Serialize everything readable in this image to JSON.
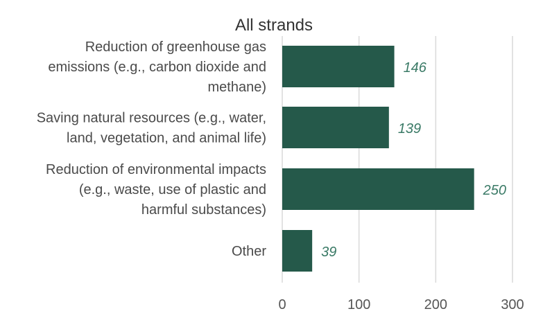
{
  "chart_data": {
    "type": "bar",
    "orientation": "horizontal",
    "title": "All strands",
    "categories": [
      [
        "Reduction of greenhouse gas",
        "emissions (e.g., carbon dioxide and",
        "methane)"
      ],
      [
        "Saving natural resources (e.g., water,",
        "land, vegetation, and animal life)"
      ],
      [
        "Reduction of environmental impacts",
        "(e.g., waste, use of plastic and",
        "harmful substances)"
      ],
      [
        "Other"
      ]
    ],
    "values": [
      146,
      139,
      250,
      39
    ],
    "data_labels": [
      "146",
      "139",
      "250",
      "39"
    ],
    "xlim": [
      0,
      300
    ],
    "xticks": [
      0,
      100,
      200,
      300
    ],
    "tick_labels": [
      "0",
      "100",
      "200",
      "300"
    ],
    "grid": true,
    "legend": "none",
    "colors": {
      "bar": "#25594A",
      "data_label": "#3a7a66",
      "grid": "#d9d9d9"
    }
  }
}
